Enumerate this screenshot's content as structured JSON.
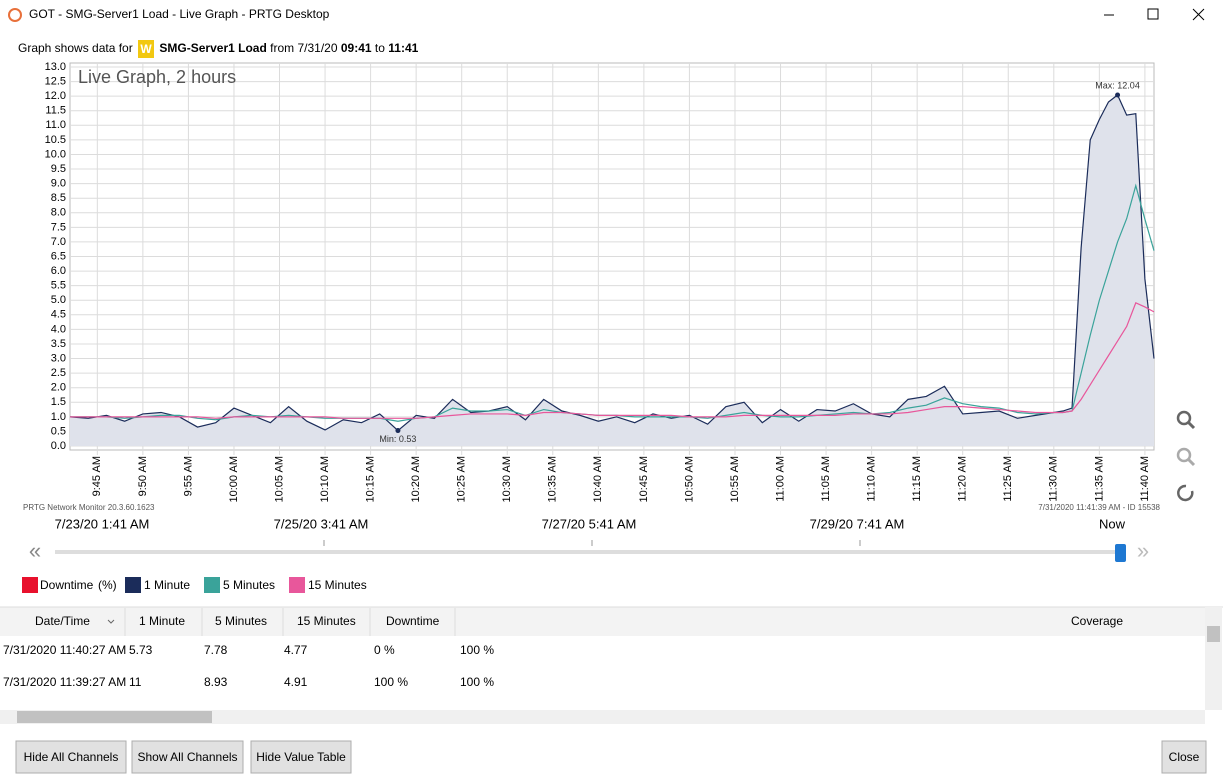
{
  "window": {
    "title": "GOT - SMG-Server1 Load - Live Graph - PRTG Desktop"
  },
  "header": {
    "prefix": "Graph shows data for",
    "badge": "W",
    "sensor": "SMG-Server1 Load",
    "from": "from 7/31/20",
    "start": "09:41",
    "to": "to",
    "end": "11:41"
  },
  "chart_data": {
    "type": "line",
    "title": "Live Graph, 2 hours",
    "footer_left": "PRTG Network Monitor 20.3.60.1623",
    "footer_right": "7/31/2020 11:41:39 AM - ID 15538",
    "annotations": [
      {
        "text": "Max: 12.04"
      },
      {
        "text": "Min: 0.53"
      }
    ],
    "x": [
      582,
      584,
      586,
      588,
      590,
      592,
      594,
      596,
      598,
      600,
      602,
      604,
      606,
      608,
      610,
      612,
      614,
      616,
      618,
      620,
      622,
      624,
      626,
      628,
      630,
      632,
      634,
      636,
      638,
      640,
      642,
      644,
      646,
      648,
      650,
      652,
      654,
      656,
      658,
      660,
      662,
      664,
      666,
      668,
      670,
      672,
      674,
      676,
      678,
      680,
      682,
      684,
      686,
      688,
      690,
      691,
      692,
      693,
      694,
      695,
      696,
      697,
      698,
      699,
      700,
      701
    ],
    "series": [
      {
        "name": "1 Minute",
        "color": "#1b2c5a",
        "area": "#dfe2eb",
        "values": [
          1.0,
          0.95,
          1.05,
          0.85,
          1.1,
          1.15,
          1.0,
          0.65,
          0.8,
          1.3,
          1.05,
          0.8,
          1.35,
          0.85,
          0.55,
          0.9,
          0.8,
          1.1,
          0.53,
          1.05,
          0.95,
          1.6,
          1.15,
          1.2,
          1.35,
          0.9,
          1.6,
          1.2,
          1.05,
          0.85,
          1.0,
          0.8,
          1.1,
          0.95,
          1.05,
          0.75,
          1.35,
          1.5,
          0.8,
          1.25,
          0.85,
          1.25,
          1.2,
          1.45,
          1.1,
          1.0,
          1.6,
          1.7,
          2.05,
          1.1,
          1.15,
          1.2,
          0.95,
          1.05,
          1.15,
          1.2,
          1.3,
          6.8,
          10.5,
          11.2,
          11.8,
          12.04,
          11.35,
          11.4,
          5.73,
          3.0
        ]
      },
      {
        "name": "5 Minutes",
        "color": "#3aa39a",
        "values": [
          1.0,
          1.0,
          1.0,
          0.95,
          1.0,
          1.05,
          1.05,
          0.95,
          0.9,
          1.0,
          1.05,
          1.0,
          1.05,
          1.0,
          0.95,
          0.95,
          0.95,
          0.95,
          0.85,
          0.95,
          1.0,
          1.3,
          1.2,
          1.2,
          1.25,
          1.05,
          1.25,
          1.15,
          1.1,
          1.05,
          1.05,
          1.0,
          1.0,
          1.0,
          1.0,
          0.95,
          1.05,
          1.15,
          1.05,
          1.0,
          1.0,
          1.05,
          1.1,
          1.15,
          1.1,
          1.15,
          1.3,
          1.4,
          1.65,
          1.45,
          1.35,
          1.3,
          1.15,
          1.1,
          1.15,
          1.15,
          1.2,
          2.5,
          3.8,
          5.0,
          6.0,
          7.0,
          7.8,
          8.93,
          7.78,
          6.7
        ]
      },
      {
        "name": "15 Minutes",
        "color": "#e8579b",
        "values": [
          1.0,
          1.0,
          1.0,
          1.0,
          1.0,
          1.0,
          1.0,
          1.0,
          0.95,
          1.0,
          1.0,
          1.0,
          1.0,
          1.0,
          1.0,
          0.95,
          0.95,
          0.95,
          0.95,
          0.95,
          1.0,
          1.05,
          1.1,
          1.1,
          1.1,
          1.05,
          1.15,
          1.15,
          1.1,
          1.05,
          1.05,
          1.05,
          1.05,
          1.05,
          1.0,
          1.0,
          1.0,
          1.05,
          1.05,
          1.05,
          1.05,
          1.05,
          1.05,
          1.1,
          1.1,
          1.1,
          1.15,
          1.25,
          1.35,
          1.35,
          1.3,
          1.25,
          1.2,
          1.15,
          1.15,
          1.15,
          1.2,
          1.6,
          2.1,
          2.6,
          3.1,
          3.6,
          4.1,
          4.91,
          4.77,
          4.6
        ]
      }
    ],
    "xlim": [
      582,
      701
    ],
    "ylim": [
      0,
      13
    ],
    "grid": true,
    "xticks": [
      {
        "value": 585,
        "label": "9:45 AM"
      },
      {
        "value": 590,
        "label": "9:50 AM"
      },
      {
        "value": 595,
        "label": "9:55 AM"
      },
      {
        "value": 600,
        "label": "10:00 AM"
      },
      {
        "value": 605,
        "label": "10:05 AM"
      },
      {
        "value": 610,
        "label": "10:10 AM"
      },
      {
        "value": 615,
        "label": "10:15 AM"
      },
      {
        "value": 620,
        "label": "10:20 AM"
      },
      {
        "value": 625,
        "label": "10:25 AM"
      },
      {
        "value": 630,
        "label": "10:30 AM"
      },
      {
        "value": 635,
        "label": "10:35 AM"
      },
      {
        "value": 640,
        "label": "10:40 AM"
      },
      {
        "value": 645,
        "label": "10:45 AM"
      },
      {
        "value": 650,
        "label": "10:50 AM"
      },
      {
        "value": 655,
        "label": "10:55 AM"
      },
      {
        "value": 660,
        "label": "11:00 AM"
      },
      {
        "value": 665,
        "label": "11:05 AM"
      },
      {
        "value": 670,
        "label": "11:10 AM"
      },
      {
        "value": 675,
        "label": "11:15 AM"
      },
      {
        "value": 680,
        "label": "11:20 AM"
      },
      {
        "value": 685,
        "label": "11:25 AM"
      },
      {
        "value": 690,
        "label": "11:30 AM"
      },
      {
        "value": 695,
        "label": "11:35 AM"
      },
      {
        "value": 700,
        "label": "11:40 AM"
      }
    ],
    "yticks": [
      {
        "value": 0,
        "label": "0.0"
      },
      0.5,
      {
        "value": 1,
        "label": "1.0"
      },
      1.5,
      {
        "value": 2,
        "label": "2.0"
      },
      2.5,
      {
        "value": 3,
        "label": "3.0"
      },
      3.5,
      {
        "value": 4,
        "label": "4.0"
      },
      4.5,
      {
        "value": 5,
        "label": "5.0"
      },
      5.5,
      {
        "value": 6,
        "label": "6.0"
      },
      6.5,
      {
        "value": 7,
        "label": "7.0"
      },
      7.5,
      {
        "value": 8,
        "label": "8.0"
      },
      8.5,
      {
        "value": 9,
        "label": "9.0"
      },
      9.5,
      {
        "value": 10,
        "label": "10.0"
      },
      10.5,
      {
        "value": 11,
        "label": "11.0"
      },
      11.5,
      {
        "value": 12,
        "label": "12.0"
      },
      12.5,
      {
        "value": 13,
        "label": "13.0"
      }
    ]
  },
  "legend": {
    "downtime": "Downtime",
    "downtime_unit": "(%)",
    "downtime_color": "#e8112d"
  },
  "timeline": {
    "labels": [
      "7/23/20 1:41 AM",
      "7/25/20 3:41 AM",
      "7/27/20 5:41 AM",
      "7/29/20 7:41 AM",
      "Now"
    ]
  },
  "table": {
    "columns": [
      "Date/Time",
      "1 Minute",
      "5 Minutes",
      "15 Minutes",
      "Downtime",
      "Coverage"
    ],
    "rows": [
      [
        "7/31/2020 11:40:27 AM",
        "5.73",
        "7.78",
        "4.77",
        "0 %",
        "100 %"
      ],
      [
        "7/31/2020 11:39:27 AM",
        "11",
        "8.93",
        "4.91",
        "100 %",
        "100 %"
      ]
    ]
  },
  "buttons": [
    "Hide All Channels",
    "Show All Channels",
    "Hide Value Table",
    "Close"
  ]
}
